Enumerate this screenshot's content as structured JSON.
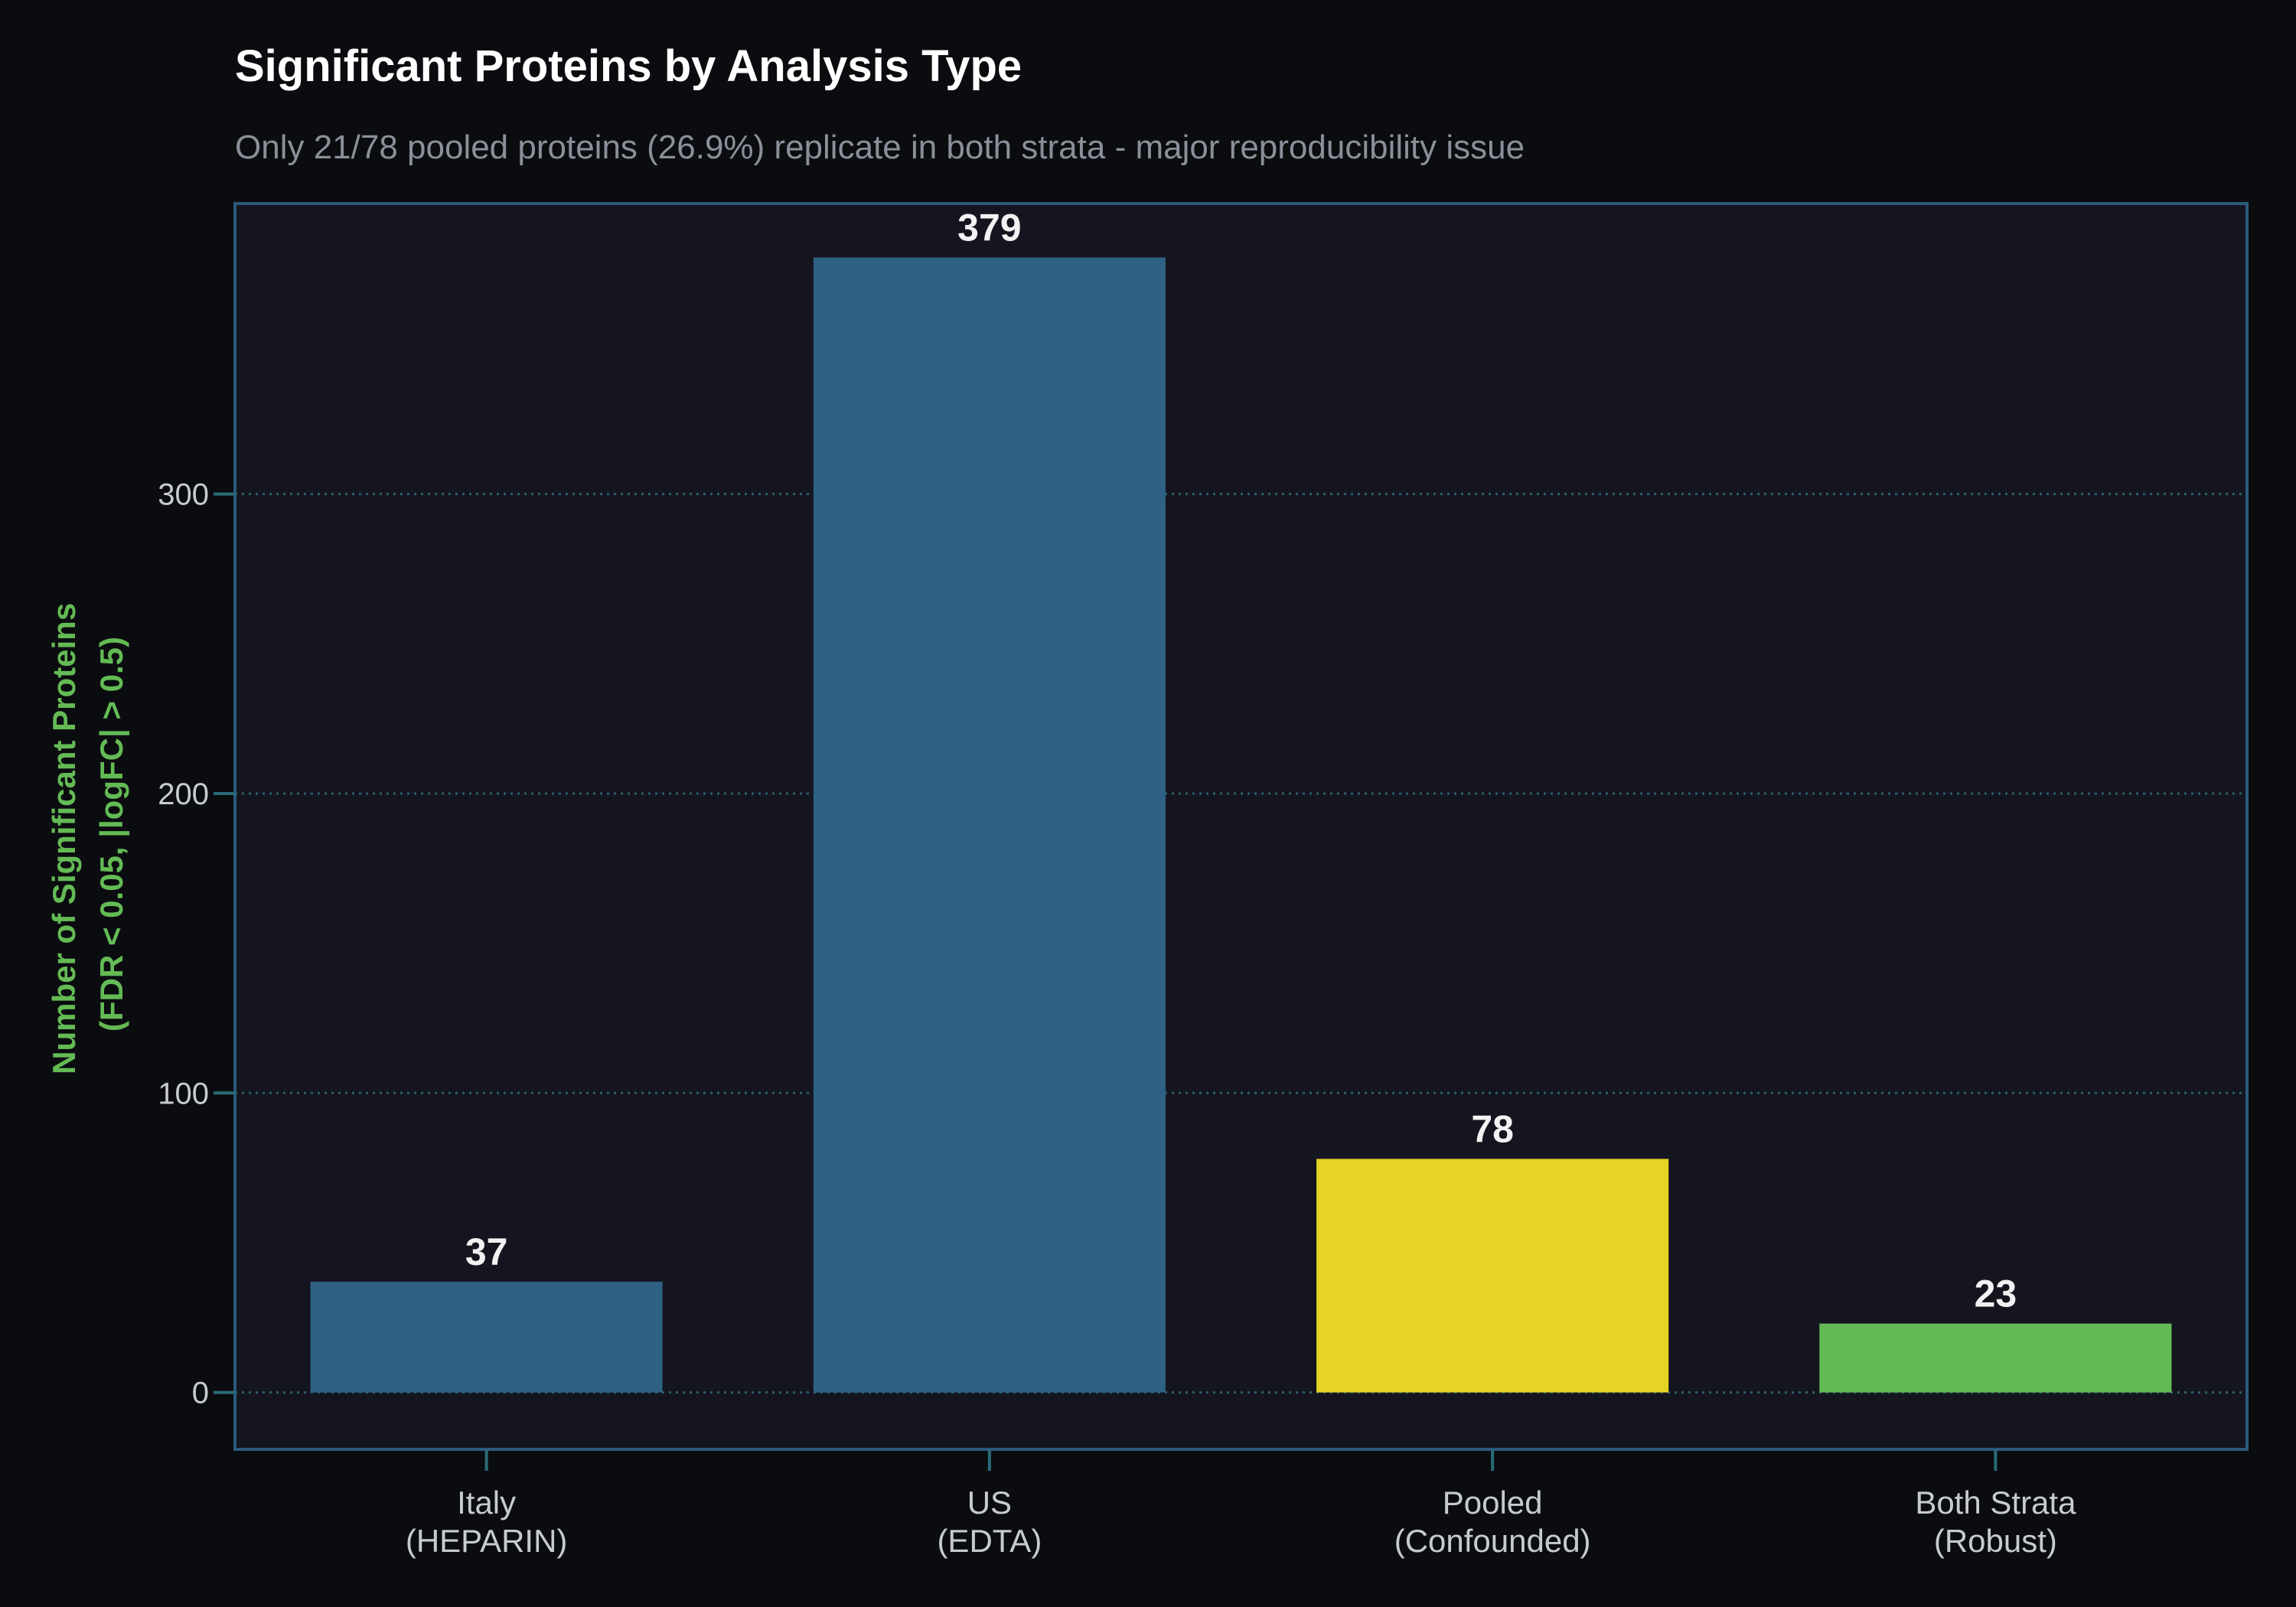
{
  "chart_data": {
    "type": "bar",
    "title": "Significant Proteins by Analysis Type",
    "subtitle": "Only 21/78 pooled proteins (26.9%) replicate in both strata - major reproducibility issue",
    "ylabel_lines": [
      "Number of Significant Proteins",
      "(FDR < 0.05, |logFC| > 0.5)"
    ],
    "categories": [
      [
        "Italy",
        "(HEPARIN)"
      ],
      [
        "US",
        "(EDTA)"
      ],
      [
        "Pooled",
        "(Confounded)"
      ],
      [
        "Both Strata",
        "(Robust)"
      ]
    ],
    "values": [
      37,
      379,
      78,
      23
    ],
    "value_labels": [
      "37",
      "379",
      "78",
      "23"
    ],
    "colors": [
      "#2e6184",
      "#2e6184",
      "#e6d325",
      "#64bb55"
    ],
    "yticks": [
      0,
      100,
      200,
      300
    ],
    "ylim": [
      -19,
      397
    ],
    "grid": "horizontal-dotted",
    "legend": "none"
  },
  "theme": {
    "background": "#0b0c10",
    "plot_background": "#14151e",
    "frame": "#2b5a7a",
    "grid": "#2a5f6e",
    "ylabel_color": "#64bb55",
    "tick_color": "#2a6b78"
  }
}
